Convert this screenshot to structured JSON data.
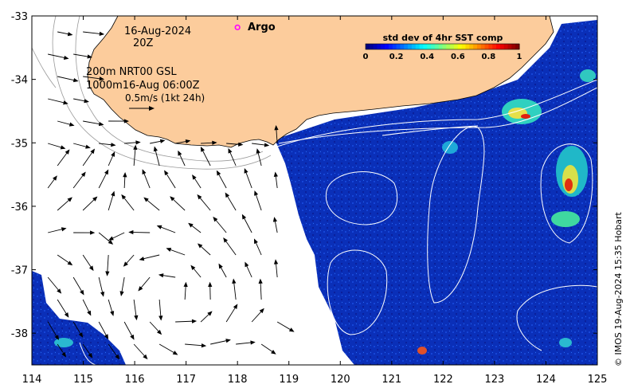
{
  "annotations": {
    "date": "16-Aug-2024",
    "time": "20Z",
    "line1": "200m  NRT00 GSL",
    "line2": "1000m16-Aug 06:00Z",
    "scale": "0.5m/s (1kt 24h)",
    "argo_label": "Argo",
    "credit": "© IMOS 19-Aug-2024 15:35 Hobart"
  },
  "colorbar": {
    "title": "std dev of 4hr SST comp",
    "ticks": [
      "0",
      "0.2",
      "0.4",
      "0.6",
      "0.8",
      "1"
    ],
    "colors": [
      "#00007f",
      "#0000ff",
      "#007fff",
      "#00ffff",
      "#7fff7f",
      "#ffff00",
      "#ff7f00",
      "#ff0000",
      "#7f0000"
    ]
  },
  "axes": {
    "x_ticks": [
      "114",
      "115",
      "116",
      "117",
      "118",
      "119",
      "120",
      "121",
      "122",
      "123",
      "124",
      "125"
    ],
    "y_ticks": [
      "-33",
      "-34",
      "-35",
      "-36",
      "-37",
      "-38"
    ],
    "lon_range": [
      114,
      125
    ],
    "lat_range": [
      -38.5,
      -33
    ]
  },
  "colors": {
    "land": "#fccc9c",
    "ocean": "#0a2fb8",
    "nodata": "#ffffff",
    "argo": "#ff00ff"
  },
  "argo_float": {
    "lon": 118.0,
    "lat": -33.18
  }
}
